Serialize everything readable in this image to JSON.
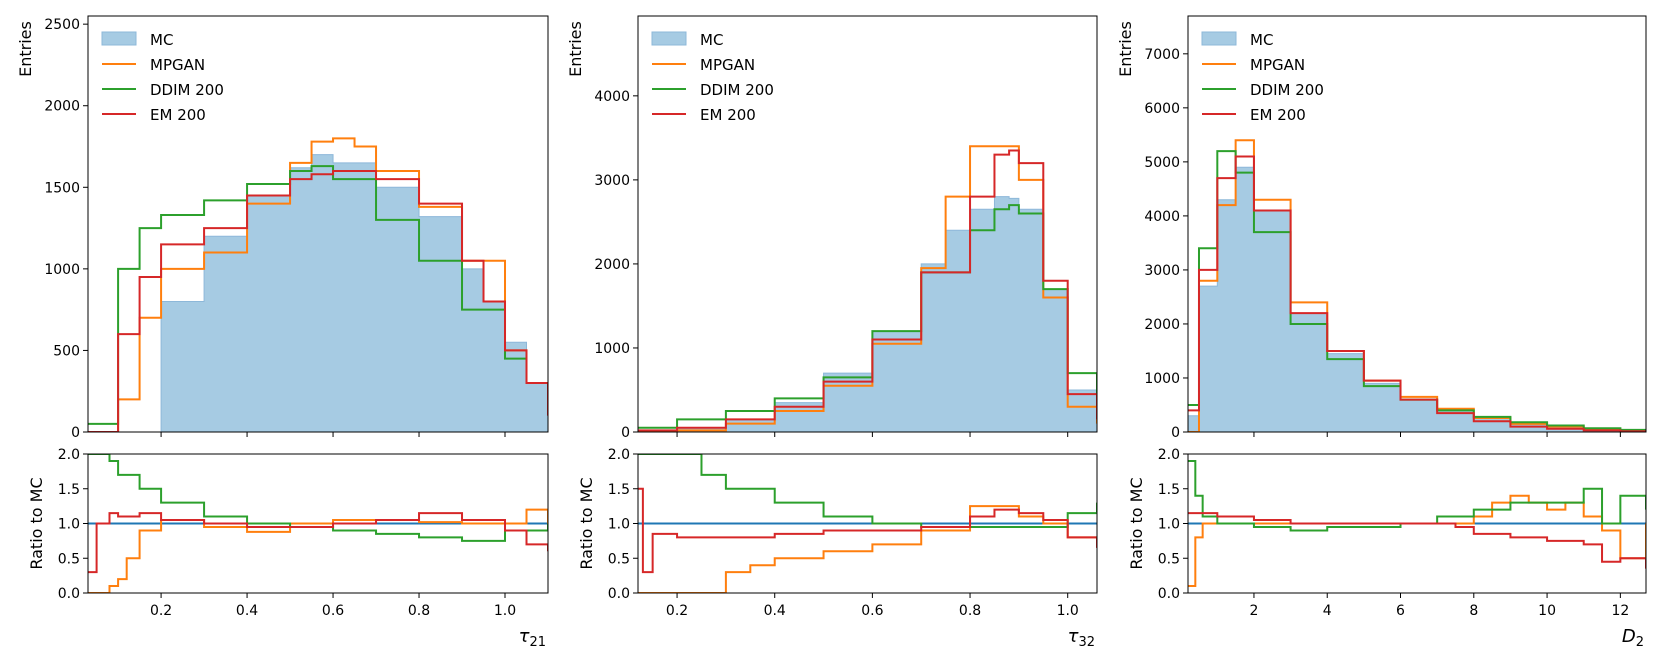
{
  "chart_data": [
    {
      "type": "histogram",
      "xlabel_base": "τ",
      "xlabel_sub": "21",
      "main_ylabel": "Entries",
      "ratio_ylabel": "Ratio to MC",
      "xlim": [
        0.03,
        1.1
      ],
      "main_ylim": [
        0,
        2550
      ],
      "ratio_ylim": [
        0,
        2
      ],
      "xticks": [
        {
          "v": 0.2,
          "label": "0.2"
        },
        {
          "v": 0.4,
          "label": "0.4"
        },
        {
          "v": 0.6,
          "label": "0.6"
        },
        {
          "v": 0.8,
          "label": "0.8"
        },
        {
          "v": 1.0,
          "label": "1.0"
        }
      ],
      "main_yticks": [
        {
          "v": 0,
          "label": "0"
        },
        {
          "v": 500,
          "label": "500"
        },
        {
          "v": 1000,
          "label": "1000"
        },
        {
          "v": 1500,
          "label": "1500"
        },
        {
          "v": 2000,
          "label": "2000"
        },
        {
          "v": 2500,
          "label": "2500"
        }
      ],
      "ratio_yticks": [
        {
          "v": 0,
          "label": "0.0"
        },
        {
          "v": 0.5,
          "label": "0.5"
        },
        {
          "v": 1.0,
          "label": "1.0"
        },
        {
          "v": 1.5,
          "label": "1.5"
        },
        {
          "v": 2.0,
          "label": "2.0"
        }
      ],
      "legend": [
        {
          "name": "MC",
          "kind": "fill"
        },
        {
          "name": "MPGAN",
          "kind": "line"
        },
        {
          "name": "DDIM 200",
          "kind": "line"
        },
        {
          "name": "EM 200",
          "kind": "line"
        }
      ],
      "series": [
        {
          "name": "MC",
          "kind": "fill",
          "x": [
            0.03,
            0.2,
            0.3,
            0.4,
            0.5,
            0.55,
            0.6,
            0.7,
            0.8,
            0.9,
            0.95,
            1.0,
            1.05,
            1.1
          ],
          "y": [
            0,
            800,
            1200,
            1450,
            1620,
            1700,
            1650,
            1500,
            1320,
            1000,
            800,
            550,
            300,
            150
          ]
        },
        {
          "name": "MPGAN",
          "kind": "line",
          "x": [
            0.03,
            0.1,
            0.15,
            0.2,
            0.3,
            0.4,
            0.5,
            0.55,
            0.6,
            0.65,
            0.7,
            0.8,
            0.9,
            1.0,
            1.05,
            1.1
          ],
          "y": [
            0,
            200,
            700,
            1000,
            1100,
            1400,
            1650,
            1780,
            1800,
            1750,
            1600,
            1380,
            1050,
            500,
            300,
            150
          ]
        },
        {
          "name": "DDIM 200",
          "kind": "line",
          "x": [
            0.03,
            0.1,
            0.15,
            0.2,
            0.3,
            0.4,
            0.5,
            0.55,
            0.6,
            0.7,
            0.8,
            0.9,
            1.0,
            1.05,
            1.1
          ],
          "y": [
            50,
            1000,
            1250,
            1330,
            1420,
            1520,
            1600,
            1630,
            1550,
            1300,
            1050,
            750,
            450,
            300,
            150
          ]
        },
        {
          "name": "EM 200",
          "kind": "line",
          "x": [
            0.03,
            0.1,
            0.15,
            0.2,
            0.3,
            0.4,
            0.5,
            0.55,
            0.6,
            0.7,
            0.8,
            0.9,
            0.95,
            1.0,
            1.05,
            1.1
          ],
          "y": [
            0,
            600,
            950,
            1150,
            1250,
            1450,
            1550,
            1580,
            1600,
            1550,
            1400,
            1050,
            800,
            500,
            300,
            100
          ]
        }
      ],
      "ratio_series": [
        {
          "name": "MC",
          "kind": "hline",
          "value": 1.0
        },
        {
          "name": "MPGAN",
          "kind": "line",
          "x": [
            0.03,
            0.08,
            0.1,
            0.12,
            0.15,
            0.2,
            0.3,
            0.4,
            0.5,
            0.6,
            0.7,
            0.8,
            0.9,
            1.0,
            1.05,
            1.1
          ],
          "y": [
            0,
            0.1,
            0.2,
            0.5,
            0.9,
            1.05,
            0.95,
            0.88,
            1.0,
            1.05,
            1.05,
            1.02,
            1.0,
            1.0,
            1.2,
            1.0
          ]
        },
        {
          "name": "DDIM 200",
          "kind": "line",
          "x": [
            0.03,
            0.08,
            0.1,
            0.15,
            0.2,
            0.3,
            0.4,
            0.5,
            0.6,
            0.7,
            0.8,
            0.9,
            1.0,
            1.1
          ],
          "y": [
            2.0,
            1.9,
            1.7,
            1.5,
            1.3,
            1.1,
            1.0,
            0.95,
            0.9,
            0.85,
            0.8,
            0.75,
            0.9,
            1.0
          ]
        },
        {
          "name": "EM 200",
          "kind": "line",
          "x": [
            0.03,
            0.05,
            0.08,
            0.1,
            0.15,
            0.2,
            0.3,
            0.4,
            0.5,
            0.6,
            0.7,
            0.8,
            0.9,
            1.0,
            1.05,
            1.1
          ],
          "y": [
            0.3,
            1.0,
            1.15,
            1.1,
            1.15,
            1.05,
            1.0,
            0.95,
            0.95,
            1.0,
            1.05,
            1.15,
            1.05,
            0.9,
            0.7,
            0.6
          ]
        }
      ]
    },
    {
      "type": "histogram",
      "xlabel_base": "τ",
      "xlabel_sub": "32",
      "main_ylabel": "Entries",
      "ratio_ylabel": "Ratio to MC",
      "xlim": [
        0.12,
        1.06
      ],
      "main_ylim": [
        0,
        4950
      ],
      "ratio_ylim": [
        0,
        2
      ],
      "xticks": [
        {
          "v": 0.2,
          "label": "0.2"
        },
        {
          "v": 0.4,
          "label": "0.4"
        },
        {
          "v": 0.6,
          "label": "0.6"
        },
        {
          "v": 0.8,
          "label": "0.8"
        },
        {
          "v": 1.0,
          "label": "1.0"
        }
      ],
      "main_yticks": [
        {
          "v": 0,
          "label": "0"
        },
        {
          "v": 1000,
          "label": "1000"
        },
        {
          "v": 2000,
          "label": "2000"
        },
        {
          "v": 3000,
          "label": "3000"
        },
        {
          "v": 4000,
          "label": "4000"
        }
      ],
      "ratio_yticks": [
        {
          "v": 0,
          "label": "0.0"
        },
        {
          "v": 0.5,
          "label": "0.5"
        },
        {
          "v": 1.0,
          "label": "1.0"
        },
        {
          "v": 1.5,
          "label": "1.5"
        },
        {
          "v": 2.0,
          "label": "2.0"
        }
      ],
      "legend": [
        {
          "name": "MC",
          "kind": "fill"
        },
        {
          "name": "MPGAN",
          "kind": "line"
        },
        {
          "name": "DDIM 200",
          "kind": "line"
        },
        {
          "name": "EM 200",
          "kind": "line"
        }
      ],
      "series": [
        {
          "name": "MC",
          "kind": "fill",
          "x": [
            0.12,
            0.2,
            0.3,
            0.4,
            0.5,
            0.6,
            0.7,
            0.75,
            0.8,
            0.85,
            0.88,
            0.9,
            0.95,
            1.0,
            1.06
          ],
          "y": [
            20,
            50,
            150,
            350,
            700,
            1200,
            2000,
            2400,
            2650,
            2800,
            2780,
            2650,
            1700,
            500,
            200
          ]
        },
        {
          "name": "MPGAN",
          "kind": "line",
          "x": [
            0.12,
            0.2,
            0.3,
            0.4,
            0.5,
            0.6,
            0.7,
            0.75,
            0.8,
            0.85,
            0.9,
            0.95,
            1.0,
            1.06
          ],
          "y": [
            0,
            20,
            100,
            250,
            550,
            1050,
            1950,
            2800,
            3400,
            3400,
            3000,
            1600,
            300,
            100
          ]
        },
        {
          "name": "DDIM 200",
          "kind": "line",
          "x": [
            0.12,
            0.2,
            0.3,
            0.4,
            0.5,
            0.6,
            0.7,
            0.8,
            0.85,
            0.88,
            0.9,
            0.95,
            1.0,
            1.06
          ],
          "y": [
            50,
            150,
            250,
            400,
            650,
            1200,
            1900,
            2400,
            2650,
            2700,
            2600,
            1700,
            700,
            300
          ]
        },
        {
          "name": "EM 200",
          "kind": "line",
          "x": [
            0.12,
            0.2,
            0.3,
            0.4,
            0.5,
            0.6,
            0.7,
            0.8,
            0.85,
            0.88,
            0.9,
            0.95,
            1.0,
            1.06
          ],
          "y": [
            20,
            50,
            150,
            300,
            600,
            1100,
            1900,
            2800,
            3300,
            3350,
            3200,
            1800,
            450,
            150
          ]
        }
      ],
      "ratio_series": [
        {
          "name": "MC",
          "kind": "hline",
          "value": 1.0
        },
        {
          "name": "MPGAN",
          "kind": "line",
          "x": [
            0.12,
            0.15,
            0.2,
            0.3,
            0.35,
            0.4,
            0.5,
            0.6,
            0.7,
            0.8,
            0.85,
            0.9,
            0.95,
            1.0,
            1.06
          ],
          "y": [
            0,
            0,
            0,
            0.3,
            0.4,
            0.5,
            0.6,
            0.7,
            0.9,
            1.25,
            1.25,
            1.1,
            1.0,
            0.8,
            0.7
          ]
        },
        {
          "name": "DDIM 200",
          "kind": "line",
          "x": [
            0.12,
            0.2,
            0.25,
            0.3,
            0.4,
            0.5,
            0.6,
            0.7,
            0.8,
            0.9,
            1.0,
            1.06
          ],
          "y": [
            2.0,
            2.0,
            1.7,
            1.5,
            1.3,
            1.1,
            1.0,
            0.95,
            0.95,
            0.95,
            1.15,
            1.3
          ]
        },
        {
          "name": "EM 200",
          "kind": "line",
          "x": [
            0.12,
            0.13,
            0.15,
            0.2,
            0.3,
            0.4,
            0.5,
            0.6,
            0.7,
            0.8,
            0.85,
            0.9,
            0.95,
            1.0,
            1.06
          ],
          "y": [
            1.5,
            0.3,
            0.85,
            0.8,
            0.8,
            0.85,
            0.9,
            0.9,
            0.95,
            1.1,
            1.2,
            1.15,
            1.05,
            0.8,
            0.65
          ]
        }
      ]
    },
    {
      "type": "histogram",
      "xlabel_base": "D",
      "xlabel_sub": "2",
      "main_ylabel": "Entries",
      "ratio_ylabel": "Ratio to MC",
      "xlim": [
        0.2,
        12.7
      ],
      "main_ylim": [
        0,
        7700
      ],
      "ratio_ylim": [
        0,
        2
      ],
      "xticks": [
        {
          "v": 2,
          "label": "2"
        },
        {
          "v": 4,
          "label": "4"
        },
        {
          "v": 6,
          "label": "6"
        },
        {
          "v": 8,
          "label": "8"
        },
        {
          "v": 10,
          "label": "10"
        },
        {
          "v": 12,
          "label": "12"
        }
      ],
      "main_yticks": [
        {
          "v": 0,
          "label": "0"
        },
        {
          "v": 1000,
          "label": "1000"
        },
        {
          "v": 2000,
          "label": "2000"
        },
        {
          "v": 3000,
          "label": "3000"
        },
        {
          "v": 4000,
          "label": "4000"
        },
        {
          "v": 5000,
          "label": "5000"
        },
        {
          "v": 6000,
          "label": "6000"
        },
        {
          "v": 7000,
          "label": "7000"
        }
      ],
      "ratio_yticks": [
        {
          "v": 0,
          "label": "0.0"
        },
        {
          "v": 0.5,
          "label": "0.5"
        },
        {
          "v": 1.0,
          "label": "1.0"
        },
        {
          "v": 1.5,
          "label": "1.5"
        },
        {
          "v": 2.0,
          "label": "2.0"
        }
      ],
      "legend": [
        {
          "name": "MC",
          "kind": "fill"
        },
        {
          "name": "MPGAN",
          "kind": "line"
        },
        {
          "name": "DDIM 200",
          "kind": "line"
        },
        {
          "name": "EM 200",
          "kind": "line"
        }
      ],
      "series": [
        {
          "name": "MC",
          "kind": "fill",
          "x": [
            0.2,
            0.5,
            1.0,
            1.5,
            2.0,
            3.0,
            4.0,
            5.0,
            6.0,
            7.0,
            8.0,
            9.0,
            10.0,
            11.0,
            12.0,
            12.7
          ],
          "y": [
            300,
            2700,
            4300,
            4900,
            4100,
            2200,
            1450,
            900,
            600,
            400,
            250,
            150,
            100,
            50,
            30,
            20
          ]
        },
        {
          "name": "MPGAN",
          "kind": "line",
          "x": [
            0.2,
            0.5,
            1.0,
            1.5,
            2.0,
            3.0,
            4.0,
            5.0,
            6.0,
            7.0,
            8.0,
            9.0,
            10.0,
            11.0,
            12.0,
            12.7
          ],
          "y": [
            0,
            2800,
            4200,
            5400,
            4300,
            2400,
            1500,
            950,
            650,
            430,
            260,
            150,
            100,
            60,
            30,
            20
          ]
        },
        {
          "name": "DDIM 200",
          "kind": "line",
          "x": [
            0.2,
            0.5,
            1.0,
            1.5,
            2.0,
            3.0,
            4.0,
            5.0,
            6.0,
            7.0,
            8.0,
            9.0,
            10.0,
            11.0,
            12.0,
            12.7
          ],
          "y": [
            500,
            3400,
            5200,
            4800,
            3700,
            2000,
            1350,
            850,
            600,
            400,
            280,
            180,
            120,
            70,
            40,
            20
          ]
        },
        {
          "name": "EM 200",
          "kind": "line",
          "x": [
            0.2,
            0.5,
            1.0,
            1.5,
            2.0,
            3.0,
            4.0,
            5.0,
            6.0,
            7.0,
            8.0,
            9.0,
            10.0,
            11.0,
            12.0,
            12.7
          ],
          "y": [
            400,
            3000,
            4700,
            5100,
            4100,
            2200,
            1500,
            950,
            600,
            350,
            200,
            100,
            60,
            30,
            15,
            10
          ]
        }
      ],
      "ratio_series": [
        {
          "name": "MC",
          "kind": "hline",
          "value": 1.0
        },
        {
          "name": "MPGAN",
          "kind": "line",
          "x": [
            0.2,
            0.4,
            0.6,
            1.0,
            2.0,
            4.0,
            6.0,
            7.0,
            8.0,
            8.5,
            9.0,
            9.5,
            10.0,
            10.5,
            11.0,
            11.5,
            12.0,
            12.7
          ],
          "y": [
            0.1,
            0.8,
            1.0,
            1.0,
            1.0,
            1.0,
            1.0,
            1.0,
            1.1,
            1.3,
            1.4,
            1.3,
            1.2,
            1.3,
            1.1,
            0.9,
            0.5,
            1.0
          ]
        },
        {
          "name": "DDIM 200",
          "kind": "line",
          "x": [
            0.2,
            0.4,
            0.6,
            1.0,
            2.0,
            3.0,
            4.0,
            5.0,
            6.0,
            7.0,
            8.0,
            9.0,
            10.0,
            11.0,
            11.5,
            12.0,
            12.7
          ],
          "y": [
            1.9,
            1.4,
            1.1,
            1.0,
            0.95,
            0.9,
            0.95,
            0.95,
            1.0,
            1.1,
            1.2,
            1.3,
            1.3,
            1.5,
            1.0,
            1.4,
            1.2
          ]
        },
        {
          "name": "EM 200",
          "kind": "line",
          "x": [
            0.2,
            0.5,
            1.0,
            2.0,
            3.0,
            4.0,
            5.0,
            6.0,
            7.0,
            7.5,
            8.0,
            9.0,
            10.0,
            11.0,
            11.5,
            12.0,
            12.7
          ],
          "y": [
            1.15,
            1.15,
            1.1,
            1.05,
            1.0,
            1.0,
            1.0,
            1.0,
            1.0,
            0.95,
            0.85,
            0.8,
            0.75,
            0.7,
            0.45,
            0.5,
            0.35
          ]
        }
      ]
    }
  ]
}
